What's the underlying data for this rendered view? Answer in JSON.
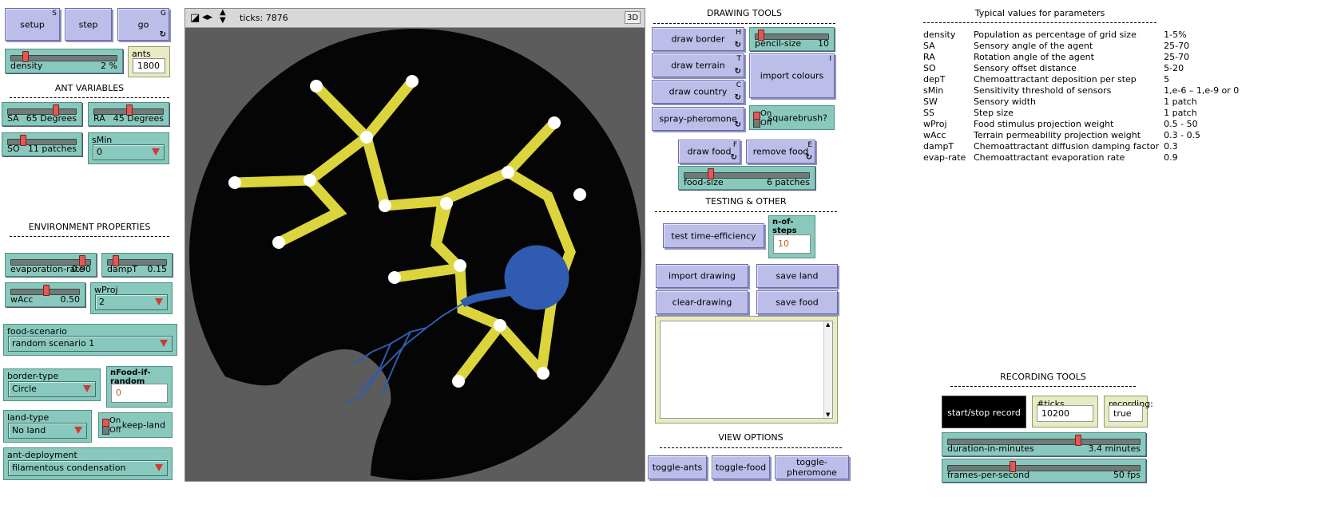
{
  "top_buttons": {
    "setup": {
      "label": "setup",
      "key": "S"
    },
    "step": {
      "label": "step"
    },
    "go": {
      "label": "go",
      "key": "G"
    }
  },
  "density": {
    "name": "density",
    "value": "2 %",
    "fraction": 0.12
  },
  "ants": {
    "name": "ants",
    "value": "1800"
  },
  "ant_variables": {
    "title": "ANT VARIABLES",
    "sa": {
      "name": "SA",
      "value": "65 Degrees",
      "fraction": 0.7
    },
    "ra": {
      "name": "RA",
      "value": "45 Degrees",
      "fraction": 0.5
    },
    "so": {
      "name": "SO",
      "value": "11 patches",
      "fraction": 0.2
    },
    "smin": {
      "name": "sMin",
      "value": "0"
    }
  },
  "environment": {
    "title": "ENVIRONMENT PROPERTIES",
    "evaporation_rate": {
      "name": "evaporation-rate",
      "value": "0.90",
      "fraction": 0.9
    },
    "dampt": {
      "name": "dampT",
      "value": "0.15",
      "fraction": 0.1
    },
    "wacc": {
      "name": "wAcc",
      "value": "0.50",
      "fraction": 0.5
    },
    "wproj": {
      "name": "wProj",
      "value": "2"
    },
    "food_scenario": {
      "name": "food-scenario",
      "value": "random scenario 1"
    },
    "border_type": {
      "name": "border-type",
      "value": "Circle"
    },
    "nfood_if_random": {
      "name": "nFood-if-random",
      "value": "0"
    },
    "land_type": {
      "name": "land-type",
      "value": "No land"
    },
    "keep_land": {
      "name": "keep-land",
      "on": "On",
      "off": "Off"
    },
    "ant_deployment": {
      "name": "ant-deployment",
      "value": "filamentous condensation"
    }
  },
  "view": {
    "ticks_label": "ticks: 7876",
    "three_d": "3D",
    "colors": {
      "background": "#050505",
      "outside": "#5c5c5c",
      "trail": "#e8e040",
      "slime": "#2f5bb0",
      "food": "#ffffff"
    }
  },
  "drawing_tools": {
    "title": "DRAWING TOOLS",
    "draw_border": {
      "label": "draw border",
      "key": "H"
    },
    "pencil_size": {
      "name": "pencil-size",
      "value": "10",
      "fraction": 0.05
    },
    "draw_terrain": {
      "label": "draw terrain",
      "key": "T"
    },
    "import_colours": {
      "label": "import colours",
      "key": "I"
    },
    "draw_country": {
      "label": "draw country",
      "key": "C"
    },
    "spray_pheromone": {
      "label": "spray-pheromone"
    },
    "squarebrush": {
      "name": "squarebrush?",
      "on": "On",
      "off": "Off"
    },
    "draw_food": {
      "label": "draw food",
      "key": "F"
    },
    "remove_food": {
      "label": "remove food",
      "key": "E"
    },
    "food_size": {
      "name": "food-size",
      "value": "6 patches",
      "fraction": 0.2
    }
  },
  "testing": {
    "title": "TESTING & OTHER",
    "test_time_efficiency": {
      "label": "test time-efficiency"
    },
    "n_of_steps": {
      "name": "n-of-steps",
      "value": "10"
    },
    "import_drawing": {
      "label": "import drawing"
    },
    "save_land": {
      "label": "save land"
    },
    "clear_drawing": {
      "label": "clear-drawing"
    },
    "save_food": {
      "label": "save food"
    }
  },
  "view_options": {
    "title": "VIEW OPTIONS",
    "toggle_ants": {
      "label": "toggle-ants"
    },
    "toggle_food": {
      "label": "toggle-food"
    },
    "toggle_pheromone": {
      "label": "toggle-pheromone"
    }
  },
  "typical_values": {
    "title": "Typical values for parameters",
    "rows": [
      {
        "name": "density",
        "desc": "Population as percentage of grid size",
        "value": "1-5%"
      },
      {
        "name": "SA",
        "desc": "Sensory angle of the agent",
        "value": "25-70"
      },
      {
        "name": "RA",
        "desc": "Rotation angle of the agent",
        "value": "25-70"
      },
      {
        "name": "SO",
        "desc": "Sensory offset distance",
        "value": "5-20"
      },
      {
        "name": "depT",
        "desc": "Chemoattractant deposition per step",
        "value": "5"
      },
      {
        "name": "sMin",
        "desc": "Sensitivity threshold of sensors",
        "value": "1,e-6 – 1,e-9 or 0"
      },
      {
        "name": "SW",
        "desc": "Sensory width",
        "value": "1 patch"
      },
      {
        "name": "SS",
        "desc": "Step size",
        "value": "1 patch"
      },
      {
        "name": "wProj",
        "desc": "Food stimulus projection weight",
        "value": "0.5 - 50"
      },
      {
        "name": "wAcc",
        "desc": "Terrain permeability projection weight",
        "value": "0.3 - 0.5"
      },
      {
        "name": "dampT",
        "desc": "Chemoattractant diffusion damping factor",
        "value": "0.3"
      },
      {
        "name": "evap-rate",
        "desc": "Chemoattractant evaporation rate",
        "value": "0.9"
      }
    ]
  },
  "recording": {
    "title": "RECORDING TOOLS",
    "start_stop": {
      "label": "start/stop record"
    },
    "ticks_recording": {
      "name": "#ticks recording:",
      "value": "10200"
    },
    "recording_state": {
      "name": "recording:",
      "value": "true"
    },
    "duration": {
      "name": "duration-in-minutes",
      "value": "3.4 minutes",
      "fraction": 0.68
    },
    "fps": {
      "name": "frames-per-second",
      "value": "50 fps",
      "fraction": 0.33
    }
  }
}
